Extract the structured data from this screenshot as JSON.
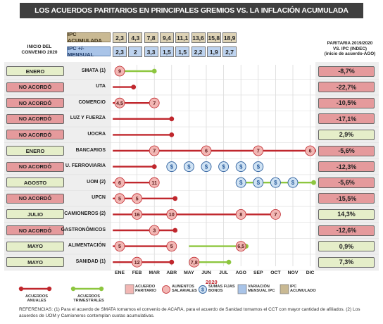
{
  "title": "LOS ACUERDOS PARITARIOS EN PRINCIPALES GREMIOS VS. LA INFLACIÓN ACUMULADA",
  "header_left": [
    "INICIO DEL",
    "CONVENIO 2020"
  ],
  "header_right": [
    "PARITARIA 2019/2020",
    "VS.  IPC (INDEC)",
    "(inicio de acuerdo-AGO)"
  ],
  "ipc": {
    "acumulada_label": "IPC ACUMULADA",
    "mensual_label": "IPC +/- MENSUAL",
    "acumulada": [
      "2,3",
      "4,3",
      "7,8",
      "9,4",
      "11,1",
      "13,6",
      "15,8",
      "18,9"
    ],
    "mensual": [
      "2,3",
      "2",
      "3,3",
      "1,5",
      "1,5",
      "2,2",
      "1,9",
      "2,7"
    ]
  },
  "months": [
    "ENE",
    "FEB",
    "MAR",
    "ABR",
    "MAY",
    "JUN",
    "JUL",
    "AGO",
    "SEP",
    "OCT",
    "NOV",
    "DIC"
  ],
  "year_label": "2020",
  "colors": {
    "annual": "#c0272d",
    "quarterly": "#8dc63f",
    "aumento": "#f2b7b4",
    "suma": "#cfe2f3",
    "red_box": "#e59a9c",
    "green_box": "#e5eec9"
  },
  "chart_data": {
    "type": "timeline",
    "x_categories": [
      "ENE",
      "FEB",
      "MAR",
      "ABR",
      "MAY",
      "JUN",
      "JUL",
      "AGO",
      "SEP",
      "OCT",
      "NOV",
      "DIC"
    ],
    "rows": [
      {
        "inicio": "ENERO",
        "inicio_color": "green",
        "gremio": "SMATA (1)",
        "result": "-8,7%",
        "result_color": "red",
        "line": {
          "kind": "trimestral",
          "from": 1,
          "to": 3
        },
        "markers": [
          {
            "kind": "aumento",
            "month": 1,
            "value": "9"
          }
        ]
      },
      {
        "inicio": "NO ACORDÓ",
        "inicio_color": "red",
        "gremio": "UTA",
        "result": "-22,7%",
        "result_color": "red",
        "line": {
          "kind": "anual",
          "from": 0.6,
          "to": 1.8
        },
        "markers": []
      },
      {
        "inicio": "NO ACORDÓ",
        "inicio_color": "red",
        "gremio": "COMERCIO",
        "result": "-10,5%",
        "result_color": "red",
        "line": {
          "kind": "anual",
          "from": 0.6,
          "to": 3
        },
        "markers": [
          {
            "kind": "aumento",
            "month": 1,
            "value": "4,5"
          },
          {
            "kind": "aumento",
            "month": 3,
            "value": "7"
          }
        ]
      },
      {
        "inicio": "NO ACORDÓ",
        "inicio_color": "red",
        "gremio": "LUZ Y FUERZA",
        "result": "-17,1%",
        "result_color": "red",
        "line": {
          "kind": "anual",
          "from": 0.6,
          "to": 4
        },
        "markers": []
      },
      {
        "inicio": "NO ACORDÓ",
        "inicio_color": "red",
        "gremio": "UOCRA",
        "result": "2,9%",
        "result_color": "green",
        "line": {
          "kind": "anual",
          "from": 0.6,
          "to": 4
        },
        "markers": []
      },
      {
        "inicio": "ENERO",
        "inicio_color": "green",
        "gremio": "BANCARIOS",
        "result": "-5,6%",
        "result_color": "red",
        "line": {
          "kind": "anual",
          "from": 0.6,
          "to": 12.2
        },
        "markers": [
          {
            "kind": "aumento",
            "month": 3,
            "value": "7"
          },
          {
            "kind": "aumento",
            "month": 6,
            "value": "6"
          },
          {
            "kind": "aumento",
            "month": 9,
            "value": "7"
          },
          {
            "kind": "aumento",
            "month": 12,
            "value": "6"
          }
        ]
      },
      {
        "inicio": "NO ACORDÓ",
        "inicio_color": "red",
        "gremio": "U. FERROVIARIA",
        "result": "-12,3%",
        "result_color": "red",
        "line": {
          "kind": "anual",
          "from": 0.6,
          "to": 3
        },
        "markers": [
          {
            "kind": "suma",
            "month": 4
          },
          {
            "kind": "suma",
            "month": 5
          },
          {
            "kind": "suma",
            "month": 6
          },
          {
            "kind": "suma",
            "month": 7
          },
          {
            "kind": "suma",
            "month": 8
          },
          {
            "kind": "suma",
            "month": 9
          }
        ]
      },
      {
        "inicio": "AGOSTO",
        "inicio_color": "green",
        "gremio": "UOM (2)",
        "result": "-5,6%",
        "result_color": "red",
        "line": {
          "kind": "anual",
          "from": 0.6,
          "to": 3
        },
        "line2": {
          "kind": "trimestral",
          "from": 8,
          "to": 12.2
        },
        "markers": [
          {
            "kind": "aumento",
            "month": 1,
            "value": "6"
          },
          {
            "kind": "aumento",
            "month": 3,
            "value": "11"
          },
          {
            "kind": "suma",
            "month": 8
          },
          {
            "kind": "suma",
            "month": 9
          },
          {
            "kind": "suma",
            "month": 10
          },
          {
            "kind": "suma",
            "month": 11
          }
        ]
      },
      {
        "inicio": "NO ACORDÓ",
        "inicio_color": "red",
        "gremio": "UPCN",
        "result": "-15,5%",
        "result_color": "red",
        "line": {
          "kind": "anual",
          "from": 0.6,
          "to": 4.2
        },
        "markers": [
          {
            "kind": "aumento",
            "month": 1,
            "value": "5"
          },
          {
            "kind": "aumento",
            "month": 2,
            "value": "5"
          }
        ]
      },
      {
        "inicio": "JULIO",
        "inicio_color": "green",
        "gremio": "CAMIONEROS (2)",
        "result": "14,3%",
        "result_color": "green",
        "line": {
          "kind": "anual",
          "from": 0.6,
          "to": 10
        },
        "markers": [
          {
            "kind": "aumento",
            "month": 2,
            "value": "16"
          },
          {
            "kind": "aumento",
            "month": 4,
            "value": "10"
          },
          {
            "kind": "aumento",
            "month": 8,
            "value": "8"
          },
          {
            "kind": "aumento",
            "month": 10,
            "value": "7"
          }
        ]
      },
      {
        "inicio": "NO ACORDÓ",
        "inicio_color": "red",
        "gremio": "GASTRONÓMICOS",
        "result": "-12,6%",
        "result_color": "red",
        "line": {
          "kind": "anual",
          "from": 0.6,
          "to": 4.2
        },
        "markers": [
          {
            "kind": "aumento",
            "month": 3,
            "value": "3"
          }
        ]
      },
      {
        "inicio": "MAYO",
        "inicio_color": "green",
        "gremio": "ALIMENTACIÓN",
        "result": "0,9%",
        "result_color": "green",
        "line": {
          "kind": "anual",
          "from": 0.6,
          "to": 4
        },
        "line2": {
          "kind": "trimestral",
          "from": 5,
          "to": 8.3
        },
        "markers": [
          {
            "kind": "aumento",
            "month": 1,
            "value": "5"
          },
          {
            "kind": "aumento",
            "month": 4,
            "value": "5"
          },
          {
            "kind": "aumento",
            "month": 8,
            "value": "6,5"
          }
        ]
      },
      {
        "inicio": "MAYO",
        "inicio_color": "green",
        "gremio": "SANIDAD (1)",
        "result": "7,3%",
        "result_color": "green",
        "line": {
          "kind": "anual",
          "from": 0.6,
          "to": 4
        },
        "line2": {
          "kind": "trimestral",
          "from": 5,
          "to": 7.3
        },
        "markers": [
          {
            "kind": "aumento",
            "month": 2,
            "value": "12"
          },
          {
            "kind": "aumento",
            "month": 5.3,
            "value": "7,8"
          }
        ]
      }
    ]
  },
  "legend": [
    {
      "kind": "anual",
      "label": "ACUERDOS ANUALES"
    },
    {
      "kind": "trimestral",
      "label": "ACUERDOS TRIMESTRALES"
    },
    {
      "kind": "paritario",
      "label": "ACUERDO PARITARIO"
    },
    {
      "kind": "aumento",
      "label": "AUMENTOS SALARIALES"
    },
    {
      "kind": "suma",
      "label": "SUMAS FIJAS BONOS"
    },
    {
      "kind": "var-mensual",
      "label": "VARIACIÓN MENSUAL IPC"
    },
    {
      "kind": "ipc-acum",
      "label": "IPC ACUMULADO"
    }
  ],
  "references": "REFERENCIAS: (1) Para el acuerdo de SMATA tomamos el convenio de ACARA, para el acuerdo de Sanidad tomamos el CCT con mayor cantidad de afiliados. (2) Los acuerdos de UOM y Camioneros contemplan cuotas acumulativas."
}
